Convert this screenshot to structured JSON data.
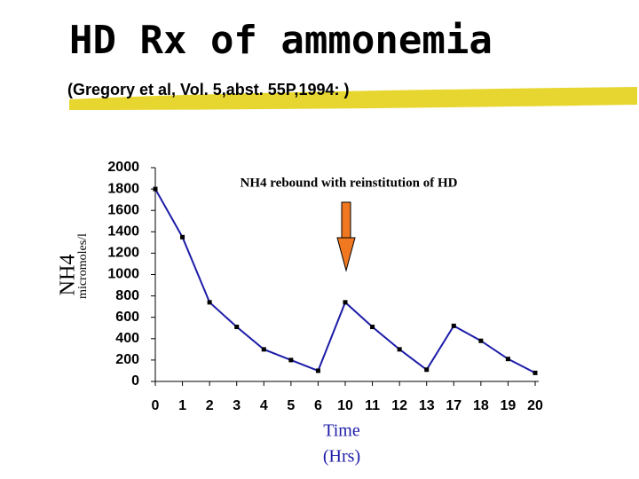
{
  "chart_data": {
    "type": "line",
    "title": "HD Rx of ammonemia",
    "subtitle": "(Gregory et al, Vol. 5,abst. 55P,1994: )",
    "ylabel": "NH4",
    "yunit": "micromoles/l",
    "xlabel": [
      "Time",
      "(Hrs)"
    ],
    "annotation": "NH4 rebound with reinstitution of HD",
    "categories": [
      "0",
      "1",
      "2",
      "3",
      "4",
      "5",
      "6",
      "10",
      "11",
      "12",
      "13",
      "17",
      "18",
      "19",
      "20"
    ],
    "values": [
      1800,
      1350,
      740,
      510,
      300,
      200,
      100,
      740,
      510,
      300,
      110,
      520,
      380,
      210,
      80
    ],
    "color": "#1c1ca8",
    "marker_color": "#000000",
    "ylim": [
      0,
      2000
    ],
    "yticks": [
      0,
      200,
      400,
      600,
      800,
      1000,
      1200,
      1400,
      1600,
      1800,
      2000
    ]
  }
}
